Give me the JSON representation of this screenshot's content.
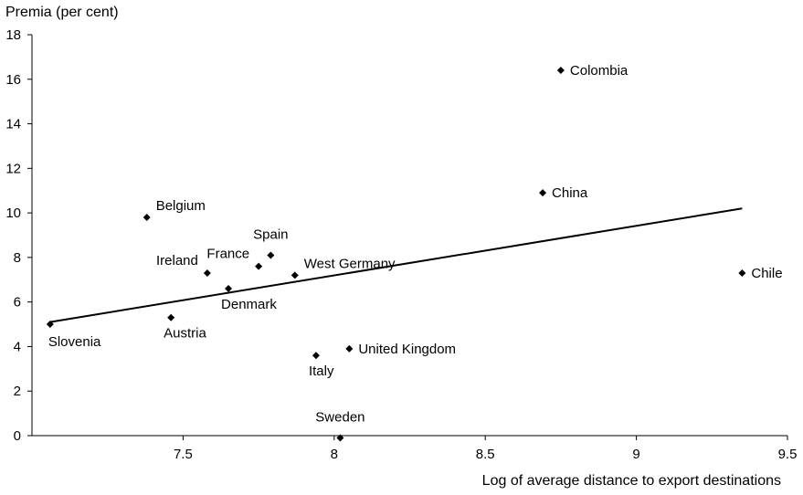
{
  "chart_data": {
    "type": "scatter",
    "title": "",
    "ylabel": "Premia (per cent)",
    "xlabel": "Log of average distance to export destinations",
    "xlim": [
      7.0,
      9.5
    ],
    "ylim": [
      0,
      18
    ],
    "xticks": [
      {
        "value": 7.5,
        "label": "7.5"
      },
      {
        "value": 8,
        "label": "8"
      },
      {
        "value": 8.5,
        "label": "8.5"
      },
      {
        "value": 9,
        "label": "9"
      },
      {
        "value": 9.5,
        "label": "9.5"
      }
    ],
    "yticks": [
      {
        "value": 0,
        "label": "0"
      },
      {
        "value": 2,
        "label": "2"
      },
      {
        "value": 4,
        "label": "4"
      },
      {
        "value": 6,
        "label": "6"
      },
      {
        "value": 8,
        "label": "8"
      },
      {
        "value": 10,
        "label": "10"
      },
      {
        "value": 12,
        "label": "12"
      },
      {
        "value": 14,
        "label": "14"
      },
      {
        "value": 16,
        "label": "16"
      },
      {
        "value": 18,
        "label": "18"
      }
    ],
    "grid": false,
    "marker": "diamond",
    "points": [
      {
        "label": "Colombia",
        "x": 8.75,
        "y": 16.4,
        "label_pos": "right"
      },
      {
        "label": "China",
        "x": 8.69,
        "y": 10.9,
        "label_pos": "right"
      },
      {
        "label": "Chile",
        "x": 9.35,
        "y": 7.3,
        "label_pos": "right"
      },
      {
        "label": "Belgium",
        "x": 7.38,
        "y": 9.8,
        "label_pos": "above-right"
      },
      {
        "label": "Spain",
        "x": 7.79,
        "y": 8.1,
        "label_pos": "above"
      },
      {
        "label": "France",
        "x": 7.75,
        "y": 7.6,
        "label_pos": "above-left"
      },
      {
        "label": "Ireland",
        "x": 7.58,
        "y": 7.3,
        "label_pos": "above-left"
      },
      {
        "label": "West Germany",
        "x": 7.87,
        "y": 7.2,
        "label_pos": "above-right"
      },
      {
        "label": "Denmark",
        "x": 7.65,
        "y": 6.6,
        "label_pos": "below-right"
      },
      {
        "label": "Austria",
        "x": 7.46,
        "y": 5.3,
        "label_pos": "below-right"
      },
      {
        "label": "Slovenia",
        "x": 7.06,
        "y": 5.0,
        "label_pos": "below"
      },
      {
        "label": "United Kingdom",
        "x": 8.05,
        "y": 3.9,
        "label_pos": "right"
      },
      {
        "label": "Italy",
        "x": 7.94,
        "y": 3.6,
        "label_pos": "below-right"
      },
      {
        "label": "Sweden",
        "x": 8.02,
        "y": -0.1,
        "label_pos": "above"
      }
    ],
    "trendline": {
      "x": [
        7.06,
        9.35
      ],
      "y": [
        5.1,
        10.2
      ]
    }
  }
}
